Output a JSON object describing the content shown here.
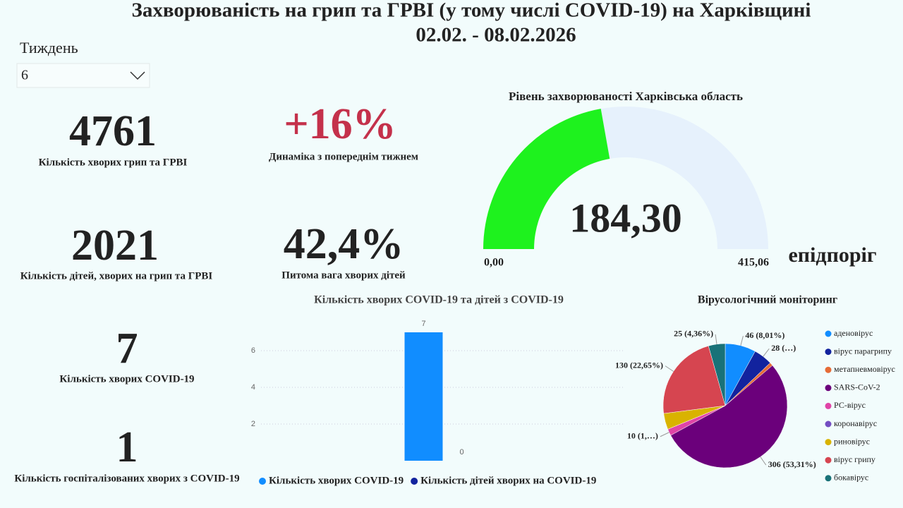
{
  "header": {
    "title": "Захворюваність на грип та ГРВІ (у тому числі COVID-19) на Харківщині",
    "subtitle": "02.02. - 08.02.2026"
  },
  "filter": {
    "label": "Тиждень",
    "value": "6"
  },
  "kpis": [
    {
      "value": "4761",
      "label": "Кількість хворих грип та ГРВІ"
    },
    {
      "value": "+16%",
      "label": "Динаміка з попереднім тижнем"
    },
    {
      "value": "2021",
      "label": "Кількість дітей, хворих на грип та ГРВІ"
    },
    {
      "value": "42,4%",
      "label": "Питома вага хворих дітей"
    },
    {
      "value": "7",
      "label": "Кількість хворих COVID-19"
    },
    {
      "value": "1",
      "label": "Кількість госпіталізованих хворих з COVID-19"
    }
  ],
  "chart_data": [
    {
      "type": "gauge",
      "title": "Рівень захворюваності Харківська область",
      "values": [
        184.3
      ],
      "value_labels": [
        "184,30"
      ],
      "ylim": [
        0,
        415.06
      ],
      "yticks": [
        {
          "value": 0,
          "label": "0,00"
        },
        {
          "value": 415.06,
          "label": "415,06"
        }
      ],
      "annotation": "епідпоріг",
      "color": "#1ef21e",
      "track_color": "#e6f1fc"
    },
    {
      "type": "bar",
      "title": "Кількість хворих COVID-19 та дітей з COVID-19",
      "categories": [
        null
      ],
      "series": [
        {
          "name": "Кількість хворих COVID-19",
          "color": "#118dff",
          "values": [
            7
          ]
        },
        {
          "name": "Кількість дітей хворих на COVID-19",
          "color": "#12239e",
          "values": [
            0
          ]
        }
      ],
      "ylim": [
        0,
        7.3
      ],
      "yticks": [
        2,
        4,
        6
      ],
      "grid": true
    },
    {
      "type": "pie",
      "title": "Вірусологічний моніторинг",
      "categories": [
        "аденовірус",
        "вірус парагрипу",
        "метапневмовірус",
        "SARS-CoV-2",
        "РС-вірус",
        "коронавірус",
        "риновірус",
        "вірус грипу",
        "бокавірус"
      ],
      "values": [
        46,
        28,
        5,
        306,
        10,
        0,
        24,
        130,
        25
      ],
      "value_labels": [
        "46 (8,01%)",
        "28 (…)",
        null,
        "306 (53,31%)",
        "10 (1,…)",
        null,
        null,
        "130 (22,65%)",
        "25 (4,36%)"
      ],
      "colors": [
        "#118dff",
        "#12239e",
        "#e66c37",
        "#6b007b",
        "#e044a7",
        "#744ec2",
        "#d9b300",
        "#d64550",
        "#197278"
      ]
    }
  ]
}
